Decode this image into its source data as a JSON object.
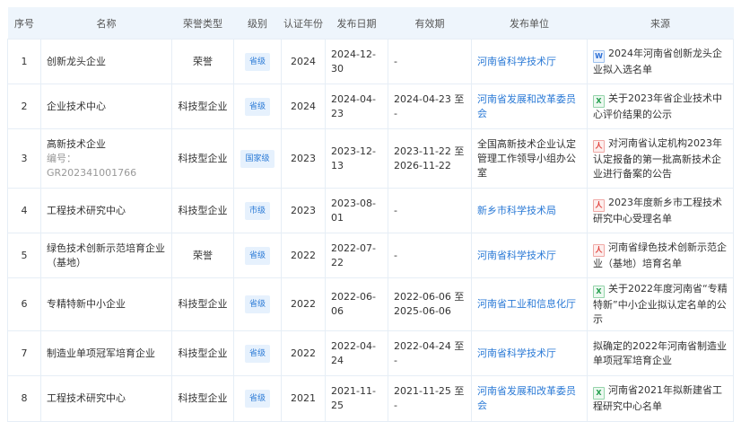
{
  "headers": [
    "序号",
    "名称",
    "荣誉类型",
    "级别",
    "认证年份",
    "发布日期",
    "有效期",
    "发布单位",
    "来源"
  ],
  "rows": [
    {
      "no": "1",
      "name": "创新龙头企业",
      "sub": "",
      "type": "荣誉",
      "level": "省级",
      "year": "2024",
      "date": "2024-12-30",
      "valid": "-",
      "publisher": "河南省科学技术厅",
      "publisher_link": true,
      "source_icon": "word",
      "source": "2024年河南省创新龙头企业拟入选名单"
    },
    {
      "no": "2",
      "name": "企业技术中心",
      "sub": "",
      "type": "科技型企业",
      "level": "省级",
      "year": "2024",
      "date": "2024-04-23",
      "valid": "2024-04-23 至 -",
      "publisher": "河南省发展和改革委员会",
      "publisher_link": true,
      "source_icon": "excel",
      "source": "关于2023年省企业技术中心评价结果的公示"
    },
    {
      "no": "3",
      "name": "高新技术企业",
      "sub": "编号：GR202341001766",
      "type": "科技型企业",
      "level": "国家级",
      "year": "2023",
      "date": "2023-12-13",
      "valid": "2023-11-22 至 2026-11-22",
      "publisher": "全国高新技术企业认定管理工作领导小组办公室",
      "publisher_link": false,
      "source_icon": "pdf",
      "source": "对河南省认定机构2023年认定报备的第一批高新技术企业进行备案的公告"
    },
    {
      "no": "4",
      "name": "工程技术研究中心",
      "sub": "",
      "type": "科技型企业",
      "level": "市级",
      "year": "2023",
      "date": "2023-08-01",
      "valid": "-",
      "publisher": "新乡市科学技术局",
      "publisher_link": true,
      "source_icon": "pdf",
      "source": "2023年度新乡市工程技术研究中心受理名单"
    },
    {
      "no": "5",
      "name": "绿色技术创新示范培育企业（基地）",
      "sub": "",
      "type": "荣誉",
      "level": "省级",
      "year": "2022",
      "date": "2022-07-22",
      "valid": "-",
      "publisher": "河南省科学技术厅",
      "publisher_link": true,
      "source_icon": "pdf",
      "source": "河南省绿色技术创新示范企业（基地）培育名单"
    },
    {
      "no": "6",
      "name": "专精特新中小企业",
      "sub": "",
      "type": "科技型企业",
      "level": "省级",
      "year": "2022",
      "date": "2022-06-06",
      "valid": "2022-06-06 至 2025-06-06",
      "publisher": "河南省工业和信息化厅",
      "publisher_link": true,
      "source_icon": "excel",
      "source": "关于2022年度河南省“专精特新”中小企业拟认定名单的公示"
    },
    {
      "no": "7",
      "name": "制造业单项冠军培育企业",
      "sub": "",
      "type": "科技型企业",
      "level": "省级",
      "year": "2022",
      "date": "2022-04-24",
      "valid": "2022-04-24 至 -",
      "publisher": "河南省科学技术厅",
      "publisher_link": true,
      "source_icon": "",
      "source": "拟确定的2022年河南省制造业单项冠军培育企业"
    },
    {
      "no": "8",
      "name": "工程技术研究中心",
      "sub": "",
      "type": "科技型企业",
      "level": "省级",
      "year": "2021",
      "date": "2021-11-25",
      "valid": "2021-11-25 至 -",
      "publisher": "河南省发展和改革委员会",
      "publisher_link": true,
      "source_icon": "excel",
      "source": "河南省2021年拟新建省工程研究中心名单"
    }
  ],
  "icon_glyphs": {
    "word": "W",
    "excel": "X",
    "pdf": "人"
  }
}
